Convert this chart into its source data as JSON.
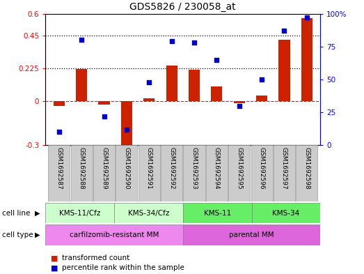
{
  "title": "GDS5826 / 230058_at",
  "samples": [
    "GSM1692587",
    "GSM1692588",
    "GSM1692589",
    "GSM1692590",
    "GSM1692591",
    "GSM1692592",
    "GSM1692593",
    "GSM1692594",
    "GSM1692595",
    "GSM1692596",
    "GSM1692597",
    "GSM1692598"
  ],
  "transformed_count": [
    -0.03,
    0.22,
    -0.02,
    -0.33,
    0.02,
    0.245,
    0.215,
    0.1,
    -0.01,
    0.04,
    0.42,
    0.57
  ],
  "percentile_rank": [
    10,
    80,
    22,
    12,
    48,
    79,
    78,
    65,
    30,
    50,
    87,
    97
  ],
  "cell_lines": [
    {
      "label": "KMS-11/Cfz",
      "start": 0,
      "end": 3,
      "color": "#ccffcc"
    },
    {
      "label": "KMS-34/Cfz",
      "start": 3,
      "end": 6,
      "color": "#ccffcc"
    },
    {
      "label": "KMS-11",
      "start": 6,
      "end": 9,
      "color": "#66ee66"
    },
    {
      "label": "KMS-34",
      "start": 9,
      "end": 12,
      "color": "#66ee66"
    }
  ],
  "cell_types": [
    {
      "label": "carfilzomib-resistant MM",
      "start": 0,
      "end": 6,
      "color": "#ee88ee"
    },
    {
      "label": "parental MM",
      "start": 6,
      "end": 12,
      "color": "#dd66dd"
    }
  ],
  "ylim_left": [
    -0.3,
    0.6
  ],
  "ylim_right": [
    0,
    100
  ],
  "yticks_left": [
    -0.3,
    0.0,
    0.225,
    0.45,
    0.6
  ],
  "yticks_right": [
    0,
    25,
    50,
    75,
    100
  ],
  "ytick_labels_left": [
    "-0.3",
    "0",
    "0.225",
    "0.45",
    "0.6"
  ],
  "ytick_labels_right": [
    "0",
    "25",
    "50",
    "75",
    "100%"
  ],
  "hlines": [
    0.225,
    0.45
  ],
  "bar_color": "#cc2200",
  "dot_color": "#0000cc",
  "bar_width": 0.5,
  "sample_box_color": "#cccccc",
  "sample_box_edge": "#999999"
}
